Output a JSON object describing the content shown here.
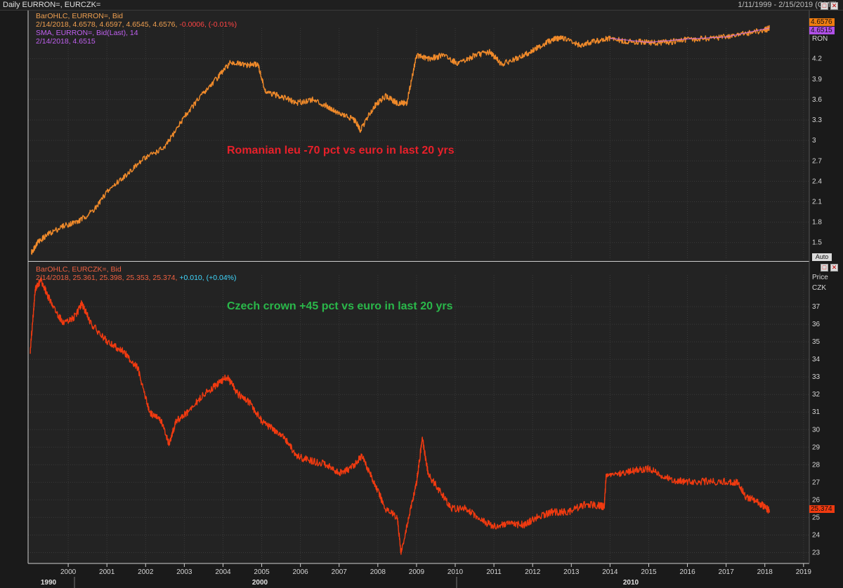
{
  "window": {
    "title": "Daily EURRON=, EURCZK=",
    "date_range": "1/11/1999 - 2/15/2019 (GMT)"
  },
  "panel1": {
    "legend1_prefix": "BarOHLC, EURRON=, Bid",
    "legend2_prefix": "2/14/2018, 4.6578, 4.6597, 4.6545, 4.6576,",
    "legend2_change": "-0.0006, (-0.01%)",
    "legend3": "SMA, EURRON=, Bid(Last),  14",
    "legend4": "2/14/2018, 4.6515",
    "annotation": "Romanian leu -70 pct vs euro in last 20 yrs",
    "unit": "RON",
    "last_price": "4.6576",
    "sma_price": "4.6515",
    "auto_label": "Auto"
  },
  "panel2": {
    "legend1": "BarOHLC, EURCZK=, Bid",
    "legend2_prefix": "2/14/2018, 25.361, 25.398, 25.353, 25.374,",
    "legend2_change": "+0.010, (+0.04%)",
    "annotation": "Czech crown +45 pct vs euro in last 20 yrs",
    "unit_top": "Price",
    "unit": "CZK",
    "last_price": "25.374"
  },
  "controls": {
    "restore_glyph": "□",
    "close_glyph": "✕"
  },
  "colors": {
    "ron_line": "#f08a2a",
    "sma_line": "#d070e0",
    "czk_line": "#f03a10",
    "grid": "#3a3a3a"
  },
  "chart_data": [
    {
      "type": "line",
      "title": "Daily EURRON=",
      "series": [
        {
          "name": "BarOHLC, EURRON=, Bid",
          "x": [
            1999.05,
            1999.2,
            1999.5,
            1999.9,
            2000.3,
            2000.7,
            2001.0,
            2001.5,
            2002.0,
            2002.5,
            2003.0,
            2003.5,
            2003.9,
            2004.2,
            2004.6,
            2004.9,
            2005.1,
            2005.5,
            2005.9,
            2006.3,
            2006.7,
            2007.0,
            2007.4,
            2007.55,
            2007.9,
            2008.2,
            2008.5,
            2008.75,
            2009.0,
            2009.3,
            2009.7,
            2010.1,
            2010.5,
            2010.9,
            2011.2,
            2011.6,
            2012.0,
            2012.4,
            2012.6,
            2012.8,
            2013.2,
            2013.6,
            2014.0,
            2014.4,
            2014.8,
            2015.2,
            2015.6,
            2016.0,
            2016.5,
            2017.0,
            2017.5,
            2018.0,
            2018.12
          ],
          "y": [
            1.35,
            1.5,
            1.63,
            1.75,
            1.82,
            2.0,
            2.25,
            2.5,
            2.75,
            2.9,
            3.35,
            3.7,
            3.95,
            4.15,
            4.1,
            4.12,
            3.7,
            3.65,
            3.55,
            3.6,
            3.5,
            3.4,
            3.3,
            3.15,
            3.5,
            3.65,
            3.55,
            3.55,
            4.25,
            4.2,
            4.25,
            4.12,
            4.25,
            4.3,
            4.12,
            4.2,
            4.32,
            4.45,
            4.5,
            4.5,
            4.4,
            4.45,
            4.5,
            4.45,
            4.45,
            4.43,
            4.45,
            4.48,
            4.5,
            4.52,
            4.57,
            4.62,
            4.65
          ]
        },
        {
          "name": "SMA, EURRON=, Bid(Last), 14",
          "x": [
            2014.0,
            2015.0,
            2016.0,
            2017.0,
            2018.12
          ],
          "y": [
            4.5,
            4.44,
            4.49,
            4.52,
            4.6515
          ]
        }
      ],
      "y_ticks": [
        "1.5",
        "1.8",
        "2.1",
        "2.4",
        "2.7",
        "3",
        "3.3",
        "3.6",
        "3.9",
        "4.2"
      ],
      "ylim": [
        1.25,
        4.65
      ]
    },
    {
      "type": "line",
      "title": "Daily EURCZK=",
      "series": [
        {
          "name": "BarOHLC, EURCZK=, Bid",
          "x": [
            1999.02,
            1999.15,
            1999.3,
            1999.6,
            1999.9,
            2000.2,
            2000.35,
            2000.6,
            2001.0,
            2001.4,
            2001.8,
            2002.1,
            2002.4,
            2002.6,
            2002.8,
            2003.1,
            2003.5,
            2003.8,
            2004.1,
            2004.4,
            2004.7,
            2005.0,
            2005.3,
            2005.6,
            2005.9,
            2006.3,
            2006.7,
            2007.0,
            2007.3,
            2007.6,
            2007.9,
            2008.2,
            2008.5,
            2008.6,
            2008.8,
            2009.0,
            2009.15,
            2009.3,
            2009.6,
            2009.9,
            2010.3,
            2010.7,
            2011.0,
            2011.4,
            2011.8,
            2012.1,
            2012.5,
            2012.9,
            2013.3,
            2013.7,
            2013.85,
            2013.9,
            2014.3,
            2014.7,
            2015.0,
            2015.3,
            2015.7,
            2016.0,
            2016.5,
            2017.0,
            2017.3,
            2017.5,
            2017.8,
            2018.0,
            2018.12
          ],
          "y": [
            34.5,
            38.0,
            38.5,
            37.0,
            36.0,
            36.5,
            37.2,
            36.0,
            35.0,
            34.5,
            33.5,
            31.0,
            30.5,
            29.2,
            30.5,
            31.0,
            32.0,
            32.5,
            33.0,
            32.0,
            31.5,
            30.5,
            30.0,
            29.5,
            28.5,
            28.2,
            28.0,
            27.5,
            27.8,
            28.5,
            27.0,
            25.5,
            25.0,
            23.0,
            25.0,
            27.0,
            29.5,
            27.5,
            26.5,
            25.5,
            25.5,
            24.8,
            24.5,
            24.6,
            24.6,
            25.0,
            25.3,
            25.3,
            25.7,
            25.7,
            25.6,
            27.4,
            27.5,
            27.7,
            27.8,
            27.4,
            27.1,
            27.05,
            27.05,
            27.03,
            27.02,
            26.2,
            25.9,
            25.6,
            25.374
          ]
        }
      ],
      "y_ticks": [
        "23",
        "24",
        "25",
        "26",
        "27",
        "28",
        "29",
        "30",
        "31",
        "32",
        "33",
        "34",
        "35",
        "36",
        "37"
      ],
      "ylim": [
        22.5,
        38.8
      ]
    }
  ],
  "x_axis": {
    "year_ticks": [
      "2000",
      "2001",
      "2002",
      "2003",
      "2004",
      "2005",
      "2006",
      "2007",
      "2008",
      "2009",
      "2010",
      "2011",
      "2012",
      "2013",
      "2014",
      "2015",
      "2016",
      "2017",
      "2018",
      "2019"
    ],
    "decade_labels": [
      "1990",
      "2000",
      "2010"
    ]
  }
}
